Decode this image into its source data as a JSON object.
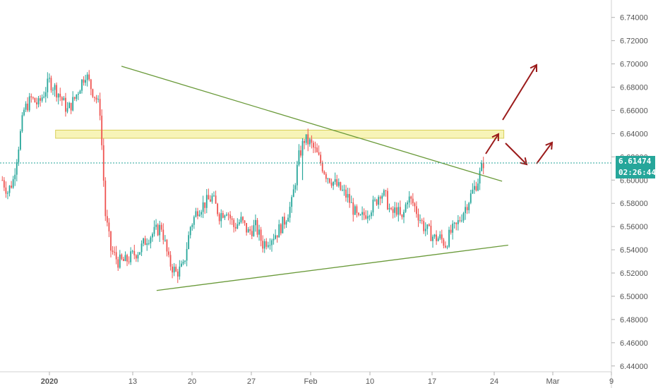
{
  "chart_data": {
    "type": "candlestick",
    "title": "",
    "xlabel": "",
    "ylabel": "",
    "ylim": [
      6.435,
      6.755
    ],
    "y_ticks": [
      "6.44000",
      "6.46000",
      "6.48000",
      "6.50000",
      "6.52000",
      "6.54000",
      "6.56000",
      "6.58000",
      "6.60000",
      "6.62000",
      "6.64000",
      "6.66000",
      "6.68000",
      "6.70000",
      "6.72000",
      "6.74000"
    ],
    "x_ticks": [
      "2020",
      "13",
      "20",
      "27",
      "Feb",
      "10",
      "17",
      "24",
      "Mar",
      "9"
    ],
    "last_price": "6.61474",
    "countdown": "02:26:44",
    "grid": false,
    "colors": {
      "up": "#26a69a",
      "down": "#ef5350",
      "trendline": "#6a9a3a",
      "resistance_zone": "#f3f09a",
      "projection_arrows": "#9b1b1b",
      "last_price_line": "#26a69a"
    },
    "candle_close_path": [
      [
        0,
        6.6
      ],
      [
        3,
        6.59
      ],
      [
        6,
        6.6
      ],
      [
        8,
        6.62
      ],
      [
        12,
        6.66
      ],
      [
        16,
        6.67
      ],
      [
        20,
        6.665
      ],
      [
        26,
        6.685
      ],
      [
        31,
        6.675
      ],
      [
        36,
        6.66
      ],
      [
        40,
        6.67
      ],
      [
        44,
        6.685
      ],
      [
        46,
        6.692
      ],
      [
        49,
        6.68
      ],
      [
        52,
        6.67
      ],
      [
        54,
        6.66
      ],
      [
        57,
        6.57
      ],
      [
        60,
        6.54
      ],
      [
        64,
        6.53
      ],
      [
        68,
        6.53
      ],
      [
        72,
        6.535
      ],
      [
        76,
        6.54
      ],
      [
        80,
        6.55
      ],
      [
        84,
        6.555
      ],
      [
        88,
        6.56
      ],
      [
        92,
        6.53
      ],
      [
        96,
        6.52
      ],
      [
        100,
        6.525
      ],
      [
        104,
        6.56
      ],
      [
        108,
        6.575
      ],
      [
        112,
        6.58
      ],
      [
        116,
        6.585
      ],
      [
        120,
        6.57
      ],
      [
        124,
        6.575
      ],
      [
        128,
        6.56
      ],
      [
        132,
        6.565
      ],
      [
        136,
        6.555
      ],
      [
        140,
        6.56
      ],
      [
        144,
        6.545
      ],
      [
        148,
        6.55
      ],
      [
        152,
        6.555
      ],
      [
        156,
        6.565
      ],
      [
        160,
        6.58
      ],
      [
        162,
        6.6
      ],
      [
        164,
        6.62
      ],
      [
        167,
        6.635
      ],
      [
        170,
        6.632
      ],
      [
        173,
        6.625
      ],
      [
        176,
        6.615
      ],
      [
        179,
        6.605
      ],
      [
        182,
        6.6
      ],
      [
        185,
        6.595
      ],
      [
        188,
        6.59
      ],
      [
        191,
        6.585
      ],
      [
        194,
        6.575
      ],
      [
        197,
        6.565
      ],
      [
        200,
        6.57
      ],
      [
        203,
        6.575
      ],
      [
        206,
        6.58
      ],
      [
        209,
        6.59
      ],
      [
        212,
        6.585
      ],
      [
        215,
        6.57
      ],
      [
        218,
        6.575
      ],
      [
        221,
        6.565
      ],
      [
        224,
        6.585
      ],
      [
        227,
        6.58
      ],
      [
        230,
        6.57
      ],
      [
        233,
        6.56
      ],
      [
        236,
        6.555
      ],
      [
        239,
        6.55
      ],
      [
        242,
        6.55
      ],
      [
        245,
        6.545
      ],
      [
        248,
        6.555
      ],
      [
        251,
        6.56
      ],
      [
        254,
        6.57
      ],
      [
        257,
        6.58
      ],
      [
        260,
        6.59
      ],
      [
        263,
        6.6
      ],
      [
        265,
        6.61
      ],
      [
        266,
        6.615
      ]
    ],
    "annotations": {
      "descending_trendline": [
        [
          9.0,
          6.698
        ],
        [
          52.3,
          6.599
        ]
      ],
      "ascending_trendline": [
        [
          13.0,
          6.505
        ],
        [
          53.0,
          6.544
        ]
      ],
      "resistance_zone": {
        "from": 6.636,
        "to": 6.643,
        "x_start": 1.5,
        "x_end": 52.5
      },
      "wick_spike": {
        "x": 29.6,
        "high": 6.636,
        "low": 6.6
      }
    }
  }
}
